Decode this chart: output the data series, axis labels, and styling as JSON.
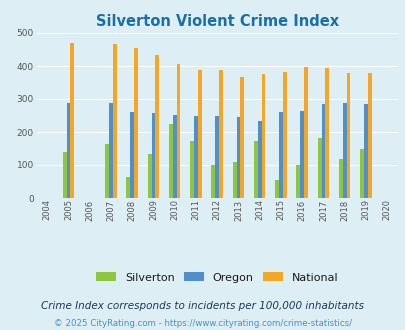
{
  "title": "Silverton Violent Crime Index",
  "years": [
    2004,
    2005,
    2006,
    2007,
    2008,
    2009,
    2010,
    2011,
    2012,
    2013,
    2014,
    2015,
    2016,
    2017,
    2018,
    2019,
    2020
  ],
  "silverton": [
    null,
    138,
    null,
    165,
    63,
    133,
    224,
    172,
    100,
    109,
    172,
    56,
    101,
    181,
    119,
    148,
    null
  ],
  "oregon": [
    null,
    289,
    null,
    289,
    261,
    257,
    253,
    250,
    250,
    245,
    234,
    261,
    264,
    286,
    288,
    285,
    null
  ],
  "national": [
    null,
    469,
    null,
    467,
    455,
    432,
    405,
    387,
    387,
    367,
    376,
    383,
    397,
    394,
    380,
    379,
    null
  ],
  "silverton_color": "#8dc63f",
  "oregon_color": "#4f8fcc",
  "national_color": "#f5a623",
  "bg_color": "#ddeef5",
  "plot_bg": "#ddeef5",
  "ylim": [
    0,
    500
  ],
  "yticks": [
    0,
    100,
    200,
    300,
    400,
    500
  ],
  "bar_width": 0.18,
  "subtitle": "Crime Index corresponds to incidents per 100,000 inhabitants",
  "footer": "© 2025 CityRating.com - https://www.cityrating.com/crime-statistics/",
  "title_color": "#1a6fa8",
  "subtitle_color": "#1a3a5c",
  "footer_color": "#4a90c4",
  "legend_text_color": "#1a1a1a",
  "grid_color": "#ffffff"
}
